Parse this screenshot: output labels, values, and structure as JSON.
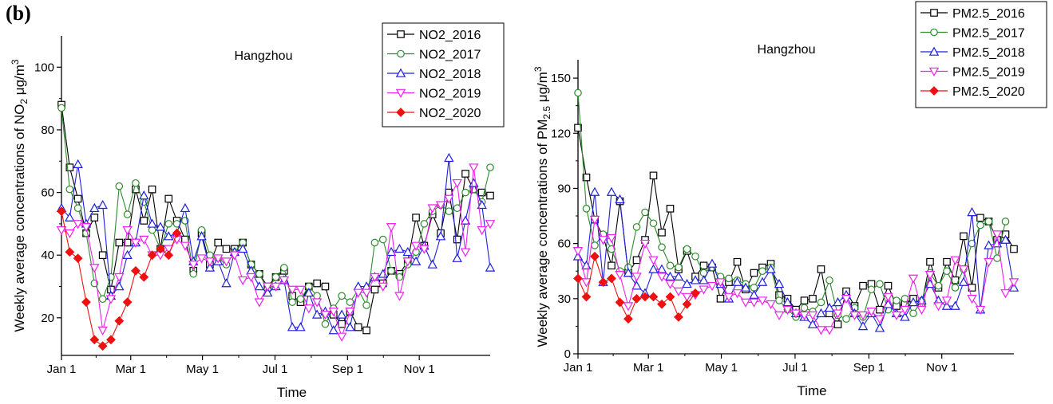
{
  "panel_label": "(b)",
  "chart_data": [
    {
      "type": "line",
      "title": "Hangzhou",
      "xlabel": "Time",
      "ylabel": "Weekly average concentrations of NO2 μg/m3",
      "ylabel_main": "Weekly average concentrations of NO",
      "ylabel_sub": "2",
      "ylabel_unit": " μg/m",
      "ylabel_sup": "3",
      "xlim": [
        1,
        53
      ],
      "ylim": [
        8,
        110
      ],
      "x_ticks": [
        {
          "label": "Jan 1",
          "week": 1
        },
        {
          "label": "Mar 1",
          "week": 9.4
        },
        {
          "label": "May 1",
          "week": 18.1
        },
        {
          "label": "Jul 1",
          "week": 26.9
        },
        {
          "label": "Sep 1",
          "week": 35.7
        },
        {
          "label": "Nov 1",
          "week": 44.4
        }
      ],
      "y_ticks": [
        20,
        40,
        60,
        80,
        100
      ],
      "legend_position": "top-right",
      "series": [
        {
          "name": "NO2_2016",
          "color": "#000000",
          "marker": "square",
          "values": [
            88,
            68,
            58,
            47,
            52,
            40,
            29,
            44,
            44,
            61,
            51,
            61,
            42,
            58,
            51,
            45,
            35,
            47,
            37,
            44,
            42,
            42,
            44,
            37,
            34,
            30,
            33,
            35,
            27,
            25,
            30,
            31,
            30,
            21,
            18,
            22,
            17,
            16,
            29,
            31,
            35,
            34,
            38,
            52,
            43,
            53,
            47,
            60,
            45,
            66,
            61,
            60,
            59
          ]
        },
        {
          "name": "NO2_2017",
          "color": "#2e8b2e",
          "marker": "circle",
          "values": [
            87,
            61,
            55,
            47,
            31,
            26,
            33,
            62,
            53,
            63,
            57,
            48,
            42,
            50,
            50,
            51,
            34,
            48,
            40,
            39,
            37,
            41,
            44,
            37,
            34,
            29,
            33,
            36,
            25,
            26,
            30,
            27,
            18,
            23,
            27,
            25,
            29,
            24,
            44,
            45,
            35,
            33,
            37,
            41,
            50,
            54,
            56,
            54,
            55,
            60,
            61,
            57,
            68
          ]
        },
        {
          "name": "NO2_2018",
          "color": "#1f1fdd",
          "marker": "triangle-up",
          "values": [
            55,
            52,
            69,
            50,
            55,
            56,
            27,
            30,
            40,
            44,
            59,
            50,
            49,
            46,
            47,
            55,
            38,
            46,
            36,
            38,
            31,
            41,
            42,
            35,
            30,
            28,
            30,
            32,
            17,
            17,
            28,
            21,
            22,
            16,
            21,
            17,
            30,
            30,
            33,
            34,
            41,
            42,
            41,
            38,
            43,
            37,
            46,
            71,
            39,
            51,
            63,
            56,
            36
          ]
        },
        {
          "name": "NO2_2019",
          "color": "#ee22ee",
          "marker": "triangle-down",
          "values": [
            48,
            47,
            50,
            49,
            36,
            16,
            26,
            33,
            48,
            44,
            45,
            40,
            40,
            42,
            45,
            43,
            37,
            39,
            38,
            39,
            38,
            40,
            32,
            33,
            25,
            30,
            30,
            32,
            29,
            29,
            23,
            25,
            21,
            22,
            14,
            22,
            28,
            28,
            33,
            30,
            49,
            27,
            38,
            43,
            42,
            55,
            56,
            58,
            63,
            41,
            68,
            48,
            50
          ]
        },
        {
          "name": "NO2_2020",
          "color": "#ee1111",
          "marker": "diamond",
          "values": [
            54,
            41,
            39,
            25,
            13,
            11,
            13,
            19,
            25,
            35,
            33,
            40,
            42,
            40,
            47
          ]
        }
      ]
    },
    {
      "type": "line",
      "title": "Hangzhou",
      "xlabel": "Time",
      "ylabel": "Weekly average concentrations of PM2.5 μg/m3",
      "ylabel_main": "Weekly average concentrations of PM",
      "ylabel_sub": "2.5",
      "ylabel_unit": " μg/m",
      "ylabel_sup": "3",
      "xlim": [
        1,
        53
      ],
      "ylim": [
        0,
        160
      ],
      "x_ticks": [
        {
          "label": "Jan 1",
          "week": 1
        },
        {
          "label": "Mar 1",
          "week": 9.4
        },
        {
          "label": "May 1",
          "week": 18.1
        },
        {
          "label": "Jul 1",
          "week": 26.9
        },
        {
          "label": "Sep 1",
          "week": 35.7
        },
        {
          "label": "Nov 1",
          "week": 44.4
        }
      ],
      "y_ticks": [
        0,
        30,
        60,
        90,
        120,
        150
      ],
      "legend_position": "top-right",
      "series": [
        {
          "name": "PM2.5_2016",
          "color": "#000000",
          "marker": "square",
          "values": [
            123,
            96,
            73,
            64,
            48,
            83,
            44,
            51,
            62,
            97,
            66,
            79,
            46,
            56,
            42,
            48,
            47,
            30,
            39,
            50,
            35,
            44,
            47,
            49,
            32,
            30,
            24,
            29,
            30,
            46,
            22,
            16,
            34,
            26,
            37,
            38,
            24,
            37,
            26,
            27,
            30,
            27,
            50,
            36,
            50,
            40,
            64,
            36,
            74,
            72,
            62,
            65,
            57
          ]
        },
        {
          "name": "PM2.5_2017",
          "color": "#2e8b2e",
          "marker": "circle",
          "values": [
            142,
            79,
            59,
            65,
            57,
            45,
            47,
            69,
            77,
            71,
            58,
            48,
            47,
            57,
            53,
            44,
            47,
            42,
            41,
            40,
            38,
            36,
            45,
            47,
            29,
            24,
            20,
            25,
            23,
            28,
            40,
            21,
            19,
            25,
            20,
            35,
            38,
            24,
            29,
            30,
            22,
            29,
            44,
            37,
            45,
            36,
            46,
            60,
            70,
            72,
            52,
            72
          ]
        },
        {
          "name": "PM2.5_2018",
          "color": "#1f1fdd",
          "marker": "triangle-up",
          "values": [
            53,
            48,
            88,
            39,
            88,
            84,
            44,
            37,
            33,
            46,
            46,
            42,
            42,
            38,
            40,
            40,
            49,
            38,
            30,
            39,
            36,
            32,
            39,
            46,
            38,
            28,
            22,
            20,
            16,
            22,
            25,
            28,
            32,
            22,
            15,
            22,
            14,
            27,
            22,
            20,
            28,
            29,
            38,
            29,
            26,
            26,
            39,
            77,
            24,
            59,
            60,
            62,
            36
          ]
        },
        {
          "name": "PM2.5_2019",
          "color": "#ee22ee",
          "marker": "triangle-down",
          "values": [
            56,
            39,
            73,
            62,
            63,
            43,
            26,
            42,
            60,
            51,
            42,
            38,
            34,
            31,
            32,
            35,
            37,
            39,
            31,
            33,
            28,
            28,
            29,
            27,
            21,
            24,
            22,
            21,
            21,
            13,
            13,
            22,
            30,
            21,
            21,
            23,
            19,
            31,
            21,
            24,
            41,
            24,
            43,
            26,
            29,
            51,
            46,
            30,
            24,
            50,
            65,
            33,
            39
          ]
        },
        {
          "name": "PM2.5_2020",
          "color": "#ee1111",
          "marker": "diamond",
          "values": [
            41,
            31,
            53,
            39,
            41,
            28,
            19,
            30,
            31,
            31,
            27,
            31,
            20,
            27,
            33
          ]
        }
      ]
    }
  ]
}
